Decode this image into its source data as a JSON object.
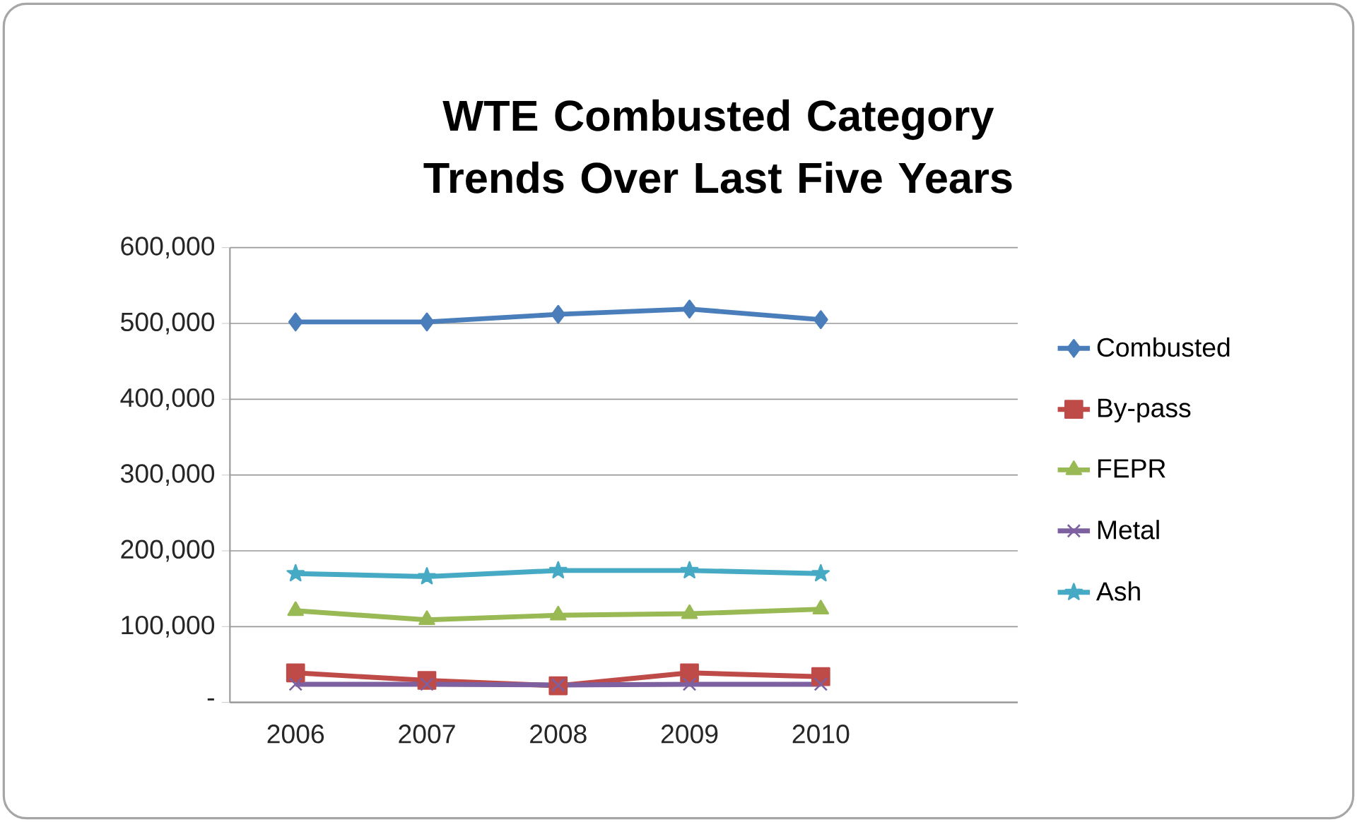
{
  "chart_data": {
    "type": "line",
    "title": "WTE Combusted Category Trends Over Last Five Years",
    "categories": [
      "2006",
      "2007",
      "2008",
      "2009",
      "2010",
      null
    ],
    "series": [
      {
        "name": "Combusted",
        "color": "#4a7ebb",
        "marker": "diamond",
        "values": [
          502000,
          502000,
          512000,
          519000,
          505000,
          null
        ]
      },
      {
        "name": "By-pass",
        "color": "#be4b48",
        "marker": "square",
        "values": [
          39000,
          29000,
          22000,
          39000,
          34000,
          null
        ]
      },
      {
        "name": "FEPR",
        "color": "#98b954",
        "marker": "triangle",
        "values": [
          121000,
          109000,
          115000,
          117000,
          123000,
          null
        ]
      },
      {
        "name": "Metal",
        "color": "#7d60a0",
        "marker": "cross",
        "values": [
          24000,
          24000,
          23000,
          24000,
          24000,
          null
        ]
      },
      {
        "name": "Ash",
        "color": "#46aac5",
        "marker": "star",
        "values": [
          170000,
          166000,
          174000,
          174000,
          170000,
          null
        ]
      }
    ],
    "ylim": [
      0,
      600000
    ],
    "yticks": [
      {
        "value": 0,
        "label": "-"
      },
      {
        "value": 100000,
        "label": "100,000"
      },
      {
        "value": 200000,
        "label": "200,000"
      },
      {
        "value": 300000,
        "label": "300,000"
      },
      {
        "value": 400000,
        "label": "400,000"
      },
      {
        "value": 500000,
        "label": "500,000"
      },
      {
        "value": 600000,
        "label": "600,000"
      }
    ],
    "grid": "y",
    "legend": "right",
    "line_style": "solid"
  }
}
